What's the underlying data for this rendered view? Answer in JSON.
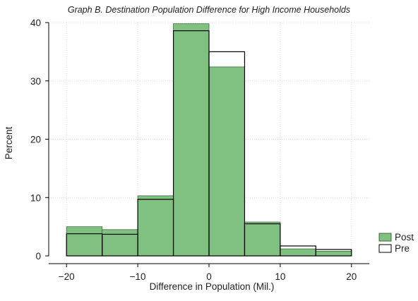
{
  "chart_data": {
    "type": "bar",
    "title": "Graph B. Destination Population Difference for High Income Households",
    "xlabel": "Difference in Population (Mil.)",
    "ylabel": "Percent",
    "xlim": [
      -22.5,
      22.5
    ],
    "ylim": [
      0,
      40
    ],
    "xticks": [
      -20,
      -10,
      0,
      10,
      20
    ],
    "yticks": [
      0,
      10,
      20,
      30,
      40
    ],
    "grid": true,
    "legend_position": "right",
    "bin_edges": [
      -20,
      -15,
      -10,
      -5,
      0,
      5,
      10,
      15,
      20
    ],
    "series": [
      {
        "name": "Post",
        "style": "filled",
        "color": "#80c080",
        "values": [
          5.0,
          4.5,
          10.3,
          39.8,
          32.4,
          5.8,
          1.2,
          0.8
        ]
      },
      {
        "name": "Pre",
        "style": "outline",
        "color": "#000000",
        "values": [
          3.8,
          3.7,
          9.7,
          38.6,
          35.0,
          5.5,
          1.7,
          1.1
        ]
      }
    ]
  }
}
